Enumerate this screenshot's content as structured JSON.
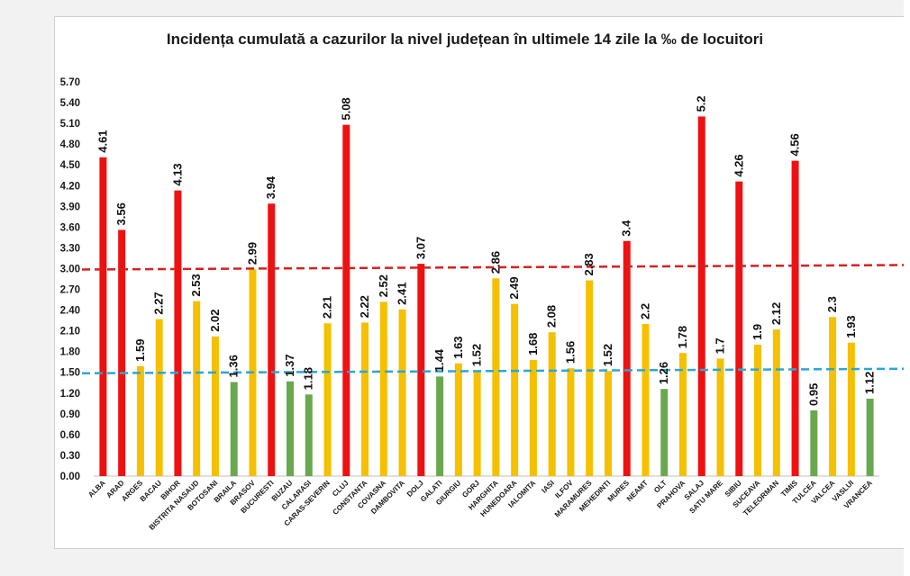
{
  "chart_data": {
    "type": "bar",
    "title": "Incidența cumulată a cazurilor la nivel județean în ultimele 14 zile la ‰ de locuitori",
    "xlabel": "",
    "ylabel": "",
    "ylim": [
      0,
      5.7
    ],
    "yticks": [
      "0.00",
      "0.30",
      "0.60",
      "0.90",
      "1.20",
      "1.50",
      "1.80",
      "2.10",
      "2.40",
      "2.70",
      "3.00",
      "3.30",
      "3.60",
      "3.90",
      "4.20",
      "4.50",
      "4.80",
      "5.10",
      "5.40",
      "5.70"
    ],
    "grid": false,
    "legend": "none",
    "categories": [
      "ALBA",
      "ARAD",
      "ARGES",
      "BACAU",
      "BIHOR",
      "BISTRITA NASAUD",
      "BOTOSANI",
      "BRAILA",
      "BRASOV",
      "BUCURESTI",
      "BUZAU",
      "CALARASI",
      "CARAS-SEVERIN",
      "CLUJ",
      "CONSTANTA",
      "COVASNA",
      "DAMBOVITA",
      "DOLJ",
      "GALATI",
      "GIURGIU",
      "GORJ",
      "HARGHITA",
      "HUNEDOARA",
      "IALOMITA",
      "IASI",
      "ILFOV",
      "MARAMURES",
      "MEHEDINTI",
      "MURES",
      "NEAMT",
      "OLT",
      "PRAHOVA",
      "SALAJ",
      "SATU MARE",
      "SIBIU",
      "SUCEAVA",
      "TELEORMAN",
      "TIMIS",
      "TULCEA",
      "VALCEA",
      "VASLUI",
      "VRANCEA"
    ],
    "values": [
      4.61,
      3.56,
      1.59,
      2.27,
      4.13,
      2.53,
      2.02,
      1.36,
      2.99,
      3.94,
      1.37,
      1.18,
      2.21,
      5.08,
      2.22,
      2.52,
      2.41,
      3.07,
      1.44,
      1.63,
      1.52,
      2.86,
      2.49,
      1.68,
      2.08,
      1.56,
      2.83,
      1.52,
      3.4,
      2.2,
      1.26,
      1.78,
      5.2,
      1.7,
      4.26,
      1.9,
      2.12,
      4.56,
      0.95,
      2.3,
      1.93,
      1.12
    ],
    "value_labels": [
      "4.61",
      "3.56",
      "1.59",
      "2.27",
      "4.13",
      "2.53",
      "2.02",
      "1.36",
      "2.99",
      "3.94",
      "1.37",
      "1.18",
      "2.21",
      "5.08",
      "2.22",
      "2.52",
      "2.41",
      "3.07",
      "1.44",
      "1.63",
      "1.52",
      "2.86",
      "2.49",
      "1.68",
      "2.08",
      "1.56",
      "2.83",
      "1.52",
      "3.4",
      "2.2",
      "1.26",
      "1.78",
      "5.2",
      "1.7",
      "4.26",
      "1.9",
      "2.12",
      "4.56",
      "0.95",
      "2.3",
      "1.93",
      "1.12"
    ],
    "bar_colors": [
      "#ee1111",
      "#ee1111",
      "#f5c000",
      "#f5c000",
      "#ee1111",
      "#f5c000",
      "#f5c000",
      "#6aa84f",
      "#f5c000",
      "#ee1111",
      "#6aa84f",
      "#6aa84f",
      "#f5c000",
      "#ee1111",
      "#f5c000",
      "#f5c000",
      "#f5c000",
      "#ee1111",
      "#6aa84f",
      "#f5c000",
      "#f5c000",
      "#f5c000",
      "#f5c000",
      "#f5c000",
      "#f5c000",
      "#f5c000",
      "#f5c000",
      "#f5c000",
      "#ee1111",
      "#f5c000",
      "#6aa84f",
      "#f5c000",
      "#ee1111",
      "#f5c000",
      "#ee1111",
      "#f5c000",
      "#f5c000",
      "#ee1111",
      "#6aa84f",
      "#f5c000",
      "#f5c000",
      "#6aa84f"
    ],
    "thresholds": [
      {
        "value": 3.0,
        "color": "#d62020",
        "style": "dashed"
      },
      {
        "value": 1.5,
        "color": "#2aa7d6",
        "style": "dashed"
      }
    ]
  },
  "colors": {
    "red": "#ee1111",
    "yellow": "#f5c000",
    "green": "#6aa84f",
    "threshold_red": "#d62020",
    "threshold_blue": "#2aa7d6"
  }
}
